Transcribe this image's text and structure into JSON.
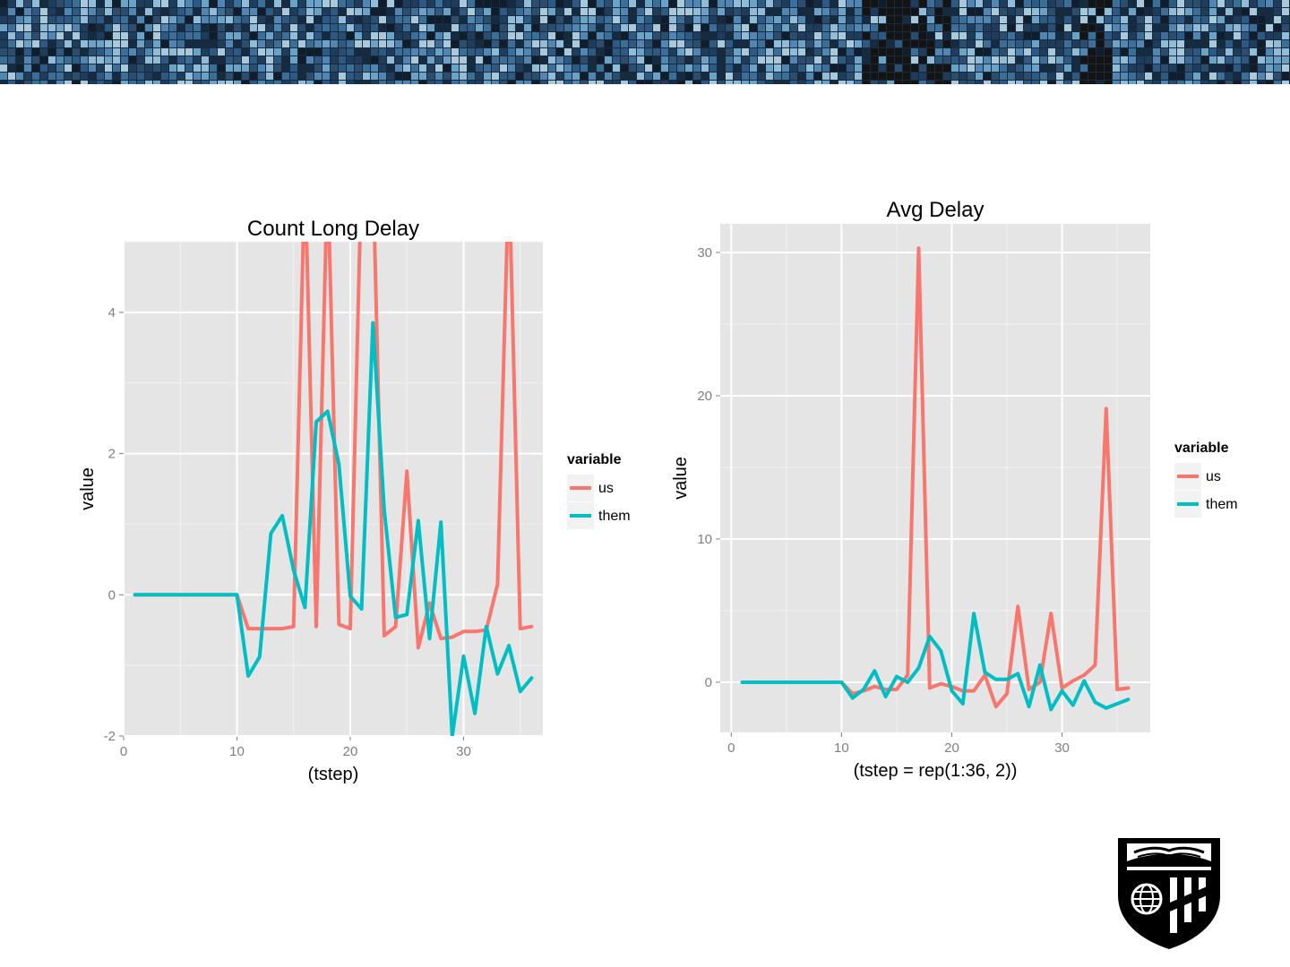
{
  "colors": {
    "us": "#F8766D",
    "them": "#00BFC4",
    "panel": "#e5e5e5"
  },
  "icons": {
    "banner": "mosaic-banner-image",
    "logo": "university-shield-logo"
  },
  "chart_data": [
    {
      "type": "line",
      "title": "Count Long Delay",
      "xlabel": "(tstep)",
      "ylabel": "value",
      "xlim": [
        0,
        37
      ],
      "ylim": [
        -2,
        5
      ],
      "xticks": [
        0,
        10,
        20,
        30
      ],
      "yticks": [
        -2,
        0,
        2,
        4
      ],
      "grid": true,
      "legend": {
        "title": "variable",
        "position": "right",
        "labels": [
          "us",
          "them"
        ]
      },
      "x": [
        1,
        2,
        3,
        4,
        5,
        6,
        7,
        8,
        9,
        10,
        11,
        12,
        13,
        14,
        15,
        16,
        17,
        18,
        19,
        20,
        21,
        22,
        23,
        24,
        25,
        26,
        27,
        28,
        29,
        30,
        31,
        32,
        33,
        34,
        35,
        36
      ],
      "series": [
        {
          "name": "us",
          "values": [
            0,
            0,
            0,
            0,
            0,
            0,
            0,
            0,
            0,
            0,
            -0.48,
            -0.48,
            -0.48,
            -0.48,
            -0.45,
            6.0,
            -0.45,
            6.0,
            -0.42,
            -0.48,
            6.0,
            6.0,
            -0.58,
            -0.45,
            1.75,
            -0.75,
            -0.12,
            -0.62,
            -0.6,
            -0.52,
            -0.52,
            -0.5,
            0.15,
            6.0,
            -0.48,
            -0.45
          ]
        },
        {
          "name": "them",
          "values": [
            0,
            0,
            0,
            0,
            0,
            0,
            0,
            0,
            0,
            0,
            -1.15,
            -0.88,
            0.87,
            1.12,
            0.35,
            -0.18,
            2.45,
            2.6,
            1.85,
            -0.02,
            -0.2,
            3.85,
            1.2,
            -0.32,
            -0.28,
            1.05,
            -0.62,
            1.03,
            -2.0,
            -0.87,
            -1.68,
            -0.45,
            -1.12,
            -0.72,
            -1.37,
            -1.18
          ]
        }
      ]
    },
    {
      "type": "line",
      "title": "Avg Delay",
      "xlabel": "(tstep = rep(1:36, 2))",
      "ylabel": "value",
      "xlim": [
        -1,
        38
      ],
      "ylim": [
        -3.5,
        32
      ],
      "xticks": [
        0,
        10,
        20,
        30
      ],
      "yticks": [
        0,
        10,
        20,
        30
      ],
      "grid": true,
      "legend": {
        "title": "variable",
        "position": "right",
        "labels": [
          "us",
          "them"
        ]
      },
      "x": [
        1,
        2,
        3,
        4,
        5,
        6,
        7,
        8,
        9,
        10,
        11,
        12,
        13,
        14,
        15,
        16,
        17,
        18,
        19,
        20,
        21,
        22,
        23,
        24,
        25,
        26,
        27,
        28,
        29,
        30,
        31,
        32,
        33,
        34,
        35,
        36
      ],
      "series": [
        {
          "name": "us",
          "values": [
            0,
            0,
            0,
            0,
            0,
            0,
            0,
            0,
            0,
            0,
            -0.8,
            -0.6,
            -0.3,
            -0.5,
            -0.5,
            0.5,
            30.3,
            -0.4,
            -0.1,
            -0.3,
            -0.6,
            -0.6,
            0.5,
            -1.7,
            -0.8,
            5.3,
            -0.5,
            0.0,
            4.8,
            -0.4,
            0.1,
            0.5,
            1.2,
            19.1,
            -0.5,
            -0.4
          ]
        },
        {
          "name": "them",
          "values": [
            0,
            0,
            0,
            0,
            0,
            0,
            0,
            0,
            0,
            0,
            -1.1,
            -0.5,
            0.8,
            -1.0,
            0.4,
            0.0,
            1.0,
            3.2,
            2.2,
            -0.6,
            -1.5,
            4.8,
            0.7,
            0.2,
            0.2,
            0.6,
            -1.7,
            1.2,
            -1.9,
            -0.6,
            -1.6,
            0.1,
            -1.4,
            -1.8,
            -1.5,
            -1.2
          ]
        }
      ]
    }
  ]
}
